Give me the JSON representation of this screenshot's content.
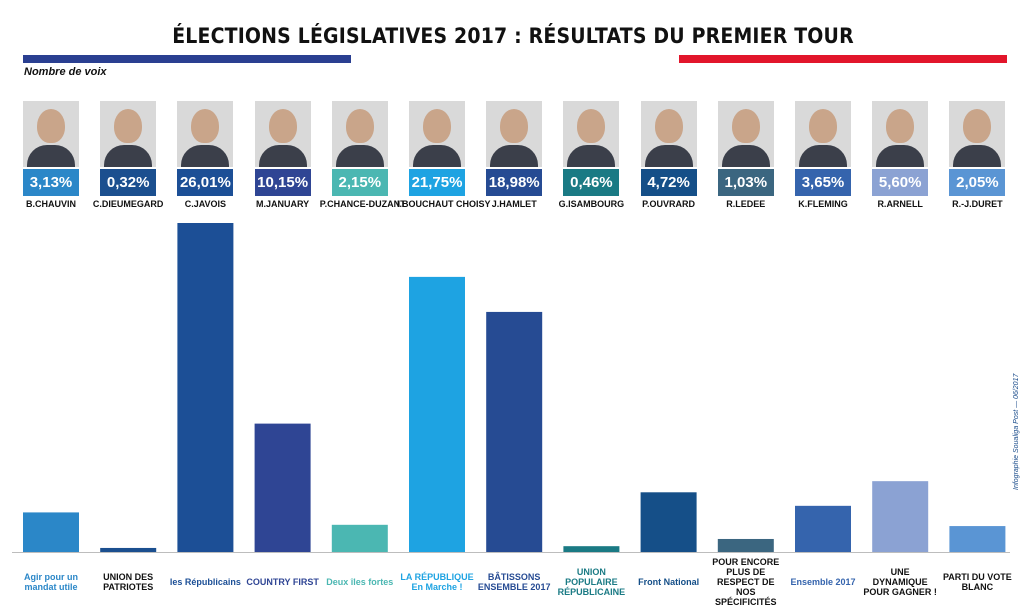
{
  "title": "ÉLECTIONS LÉGISLATIVES 2017 : RÉSULTATS DU PREMIER TOUR",
  "ylabel": "Nombre de voix",
  "credit": "Infographie Soualiga Post — 06/2017",
  "flag_colors": [
    "#2a3f91",
    "#ffffff",
    "#e2152b"
  ],
  "chart_data": {
    "type": "bar",
    "title": "ÉLECTIONS LÉGISLATIVES 2017 : RÉSULTATS DU PREMIER TOUR",
    "ylabel": "Nombre de voix",
    "xlabel": "",
    "ylim": [
      0,
      26.01
    ],
    "categories": [
      "B.CHAUVIN",
      "C.DIEUMEGARD",
      "C.JAVOIS",
      "M.JANUARY",
      "P.CHANCE-DUZANT",
      "I.BOUCHAUT CHOISY",
      "J.HAMLET",
      "G.ISAMBOURG",
      "P.OUVRARD",
      "R.LEDEE",
      "K.FLEMING",
      "R.ARNELL",
      "R.-J.DURET"
    ],
    "values": [
      3.13,
      0.32,
      26.01,
      10.15,
      2.15,
      21.75,
      18.98,
      0.46,
      4.72,
      1.03,
      3.65,
      5.6,
      2.05
    ],
    "labels": [
      "3,13%",
      "0,32%",
      "26,01%",
      "10,15%",
      "2,15%",
      "21,75%",
      "18,98%",
      "0,46%",
      "4,72%",
      "1,03%",
      "3,65%",
      "5,60%",
      "2,05%"
    ],
    "colors": [
      "#2b87c8",
      "#1b4f8f",
      "#1c4f96",
      "#2f4594",
      "#4bb7b2",
      "#1ea3e2",
      "#264b93",
      "#1a7a84",
      "#154f88",
      "#3b6680",
      "#3564ad",
      "#8ba2d3",
      "#5a95d4"
    ],
    "parties": [
      "Agir pour un mandat utile",
      "UNION DES PATRIOTES",
      "les Républicains",
      "COUNTRY FIRST",
      "Deux îles fortes",
      "LA RÉPUBLIQUE En Marche !",
      "BÂTISSONS ENSEMBLE 2017",
      "UNION POPULAIRE RÉPUBLICAINE",
      "Front National",
      "POUR ENCORE PLUS DE RESPECT DE NOS SPÉCIFICITÉS",
      "Ensemble 2017",
      "UNE DYNAMIQUE POUR GAGNER !",
      "PARTI DU VOTE BLANC"
    ]
  }
}
